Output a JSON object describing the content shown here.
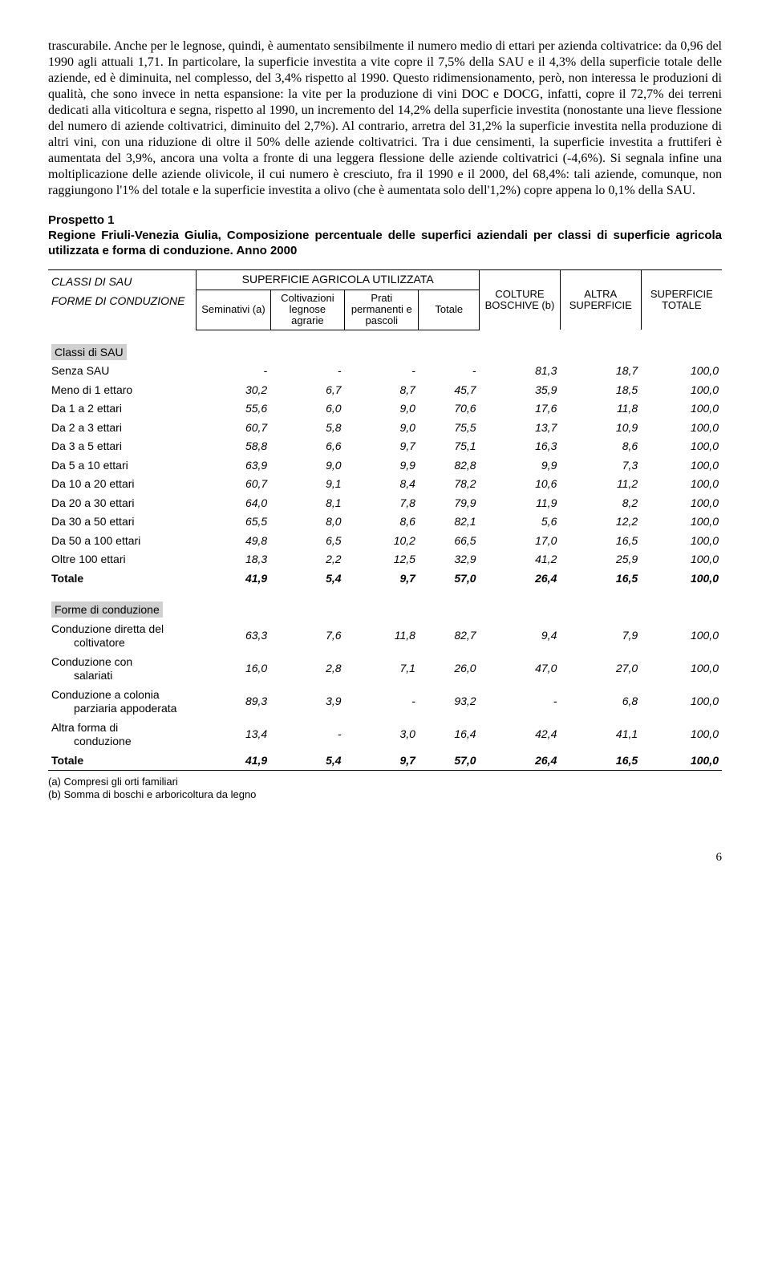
{
  "paragraph": "trascurabile. Anche per le legnose, quindi, è aumentato sensibilmente il numero medio di ettari per azienda coltivatrice: da 0,96 del 1990 agli attuali 1,71. In particolare, la superficie investita a vite copre il 7,5% della SAU e il 4,3% della superficie totale delle aziende, ed è diminuita, nel complesso, del 3,4% rispetto al 1990. Questo ridimensionamento, però, non interessa le produzioni di qualità, che sono invece in netta espansione: la vite per la produzione di vini DOC e DOCG, infatti, copre il 72,7% dei terreni dedicati alla viticoltura e segna, rispetto al 1990, un incremento del 14,2% della superficie investita (nonostante una lieve flessione del numero di aziende coltivatrici, diminuito del 2,7%). Al contrario, arretra del 31,2% la superficie investita nella produzione di altri vini, con una riduzione di oltre il 50% delle aziende coltivatrici. Tra i due censimenti, la superficie investita a fruttiferi è aumentata del 3,9%, ancora una volta a fronte di una leggera flessione delle aziende coltivatrici (-4,6%). Si segnala infine una moltiplicazione delle aziende olivicole, il cui numero è cresciuto, fra il 1990 e il 2000, del 68,4%: tali aziende, comunque, non raggiungono l'1% del totale e la superficie investita a olivo (che è aumentata solo dell'1,2%) copre appena lo 0,1% della SAU.",
  "prospetto": {
    "label": "Prospetto 1",
    "title": "Regione Friuli-Venezia Giulia, Composizione percentuale delle superfici aziendali per classi di superficie agricola utilizzata e forma di conduzione. Anno 2000"
  },
  "headers": {
    "left1": "CLASSI DI SAU",
    "left2": "FORME DI CONDUZIONE",
    "sau_group": "SUPERFICIE AGRICOLA UTILIZZATA",
    "c1": "Seminativi (a)",
    "c2": "Coltivazioni legnose agrarie",
    "c3": "Prati permanenti e pascoli",
    "c4": "Totale",
    "c5": "COLTURE BOSCHIVE (b)",
    "c6": "ALTRA SUPERFICIE",
    "c7": "SUPERFICIE TOTALE"
  },
  "section1": "Classi di SAU",
  "rows1": [
    {
      "l": "Senza SAU",
      "v": [
        "-",
        "-",
        "-",
        "-",
        "81,3",
        "18,7",
        "100,0"
      ]
    },
    {
      "l": "Meno di 1 ettaro",
      "v": [
        "30,2",
        "6,7",
        "8,7",
        "45,7",
        "35,9",
        "18,5",
        "100,0"
      ]
    },
    {
      "l": "Da 1 a 2 ettari",
      "v": [
        "55,6",
        "6,0",
        "9,0",
        "70,6",
        "17,6",
        "11,8",
        "100,0"
      ]
    },
    {
      "l": "Da 2 a 3 ettari",
      "v": [
        "60,7",
        "5,8",
        "9,0",
        "75,5",
        "13,7",
        "10,9",
        "100,0"
      ]
    },
    {
      "l": "Da 3 a 5 ettari",
      "v": [
        "58,8",
        "6,6",
        "9,7",
        "75,1",
        "16,3",
        "8,6",
        "100,0"
      ]
    },
    {
      "l": "Da 5 a 10 ettari",
      "v": [
        "63,9",
        "9,0",
        "9,9",
        "82,8",
        "9,9",
        "7,3",
        "100,0"
      ]
    },
    {
      "l": "Da 10 a 20 ettari",
      "v": [
        "60,7",
        "9,1",
        "8,4",
        "78,2",
        "10,6",
        "11,2",
        "100,0"
      ]
    },
    {
      "l": "Da 20 a 30 ettari",
      "v": [
        "64,0",
        "8,1",
        "7,8",
        "79,9",
        "11,9",
        "8,2",
        "100,0"
      ]
    },
    {
      "l": "Da 30 a 50 ettari",
      "v": [
        "65,5",
        "8,0",
        "8,6",
        "82,1",
        "5,6",
        "12,2",
        "100,0"
      ]
    },
    {
      "l": "Da 50 a 100 ettari",
      "v": [
        "49,8",
        "6,5",
        "10,2",
        "66,5",
        "17,0",
        "16,5",
        "100,0"
      ]
    },
    {
      "l": "Oltre 100 ettari",
      "v": [
        "18,3",
        "2,2",
        "12,5",
        "32,9",
        "41,2",
        "25,9",
        "100,0"
      ]
    }
  ],
  "total1": {
    "l": "Totale",
    "v": [
      "41,9",
      "5,4",
      "9,7",
      "57,0",
      "26,4",
      "16,5",
      "100,0"
    ]
  },
  "section2": "Forme di conduzione",
  "rows2": [
    {
      "l": "Conduzione diretta del",
      "l2": "coltivatore",
      "v": [
        "63,3",
        "7,6",
        "11,8",
        "82,7",
        "9,4",
        "7,9",
        "100,0"
      ]
    },
    {
      "l": "Conduzione con",
      "l2": "salariati",
      "v": [
        "16,0",
        "2,8",
        "7,1",
        "26,0",
        "47,0",
        "27,0",
        "100,0"
      ]
    },
    {
      "l": "Conduzione a colonia",
      "l2": "parziaria appoderata",
      "v": [
        "89,3",
        "3,9",
        "-",
        "93,2",
        "-",
        "6,8",
        "100,0"
      ]
    },
    {
      "l": "Altra forma di",
      "l2": "conduzione",
      "v": [
        "13,4",
        "-",
        "3,0",
        "16,4",
        "42,4",
        "41,1",
        "100,0"
      ]
    }
  ],
  "total2": {
    "l": "Totale",
    "v": [
      "41,9",
      "5,4",
      "9,7",
      "57,0",
      "26,4",
      "16,5",
      "100,0"
    ]
  },
  "footnotes": {
    "a": "(a)   Compresi gli orti familiari",
    "b": "(b)   Somma di boschi e arboricoltura da legno"
  },
  "pagenum": "6"
}
